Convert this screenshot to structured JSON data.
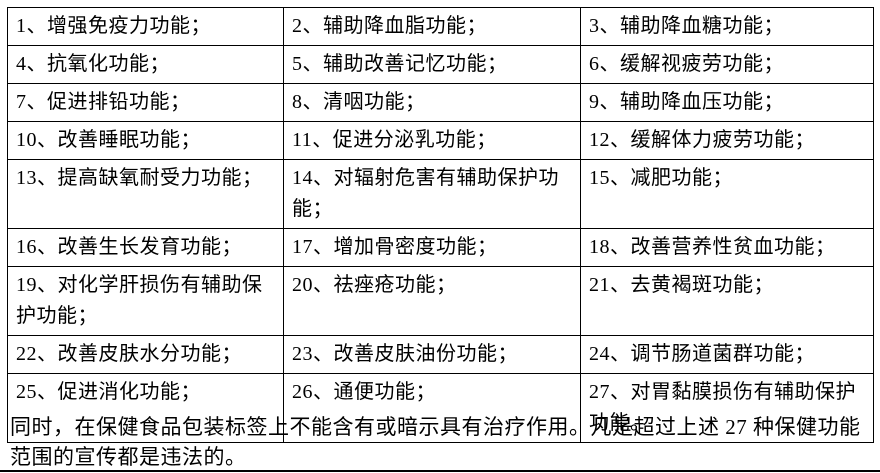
{
  "page": {
    "background_color": "#ffffff",
    "text_color": "#000000",
    "border_color": "#000000",
    "language": "zh-CN"
  },
  "table": {
    "columns": 3,
    "rows": [
      {
        "cells": [
          "1、增强免疫力功能；",
          "2、辅助降血脂功能；",
          "3、辅助降血糖功能；"
        ]
      },
      {
        "cells": [
          "4、抗氧化功能；",
          "5、辅助改善记忆功能；",
          "6、缓解视疲劳功能；"
        ]
      },
      {
        "cells": [
          "7、促进排铅功能；",
          "8、清咽功能；",
          "9、辅助降血压功能；"
        ]
      },
      {
        "cells": [
          "10、改善睡眠功能；",
          "11、促进分泌乳功能；",
          "12、缓解体力疲劳功能；"
        ]
      },
      {
        "cells": [
          "13、提高缺氧耐受力功能；",
          "14、对辐射危害有辅助保护功能；",
          "15、减肥功能；"
        ]
      },
      {
        "cells": [
          "16、改善生长发育功能；",
          "17、增加骨密度功能；",
          "18、改善营养性贫血功能；"
        ]
      },
      {
        "cells": [
          "19、对化学肝损伤有辅助保护功能；",
          "20、祛痤疮功能；",
          "21、去黄褐斑功能；"
        ]
      },
      {
        "cells": [
          "22、改善皮肤水分功能；",
          "23、改善皮肤油份功能；",
          "24、调节肠道菌群功能；"
        ]
      },
      {
        "cells": [
          "25、促进消化功能；",
          "26、通便功能；",
          "27、对胃黏膜损伤有辅助保护功能。"
        ]
      }
    ]
  },
  "footer": {
    "text": "同时，在保健食品包装标签上不能含有或暗示具有治疗作用。凡是超过上述 27 种保健功能范围的宣传都是违法的。"
  }
}
